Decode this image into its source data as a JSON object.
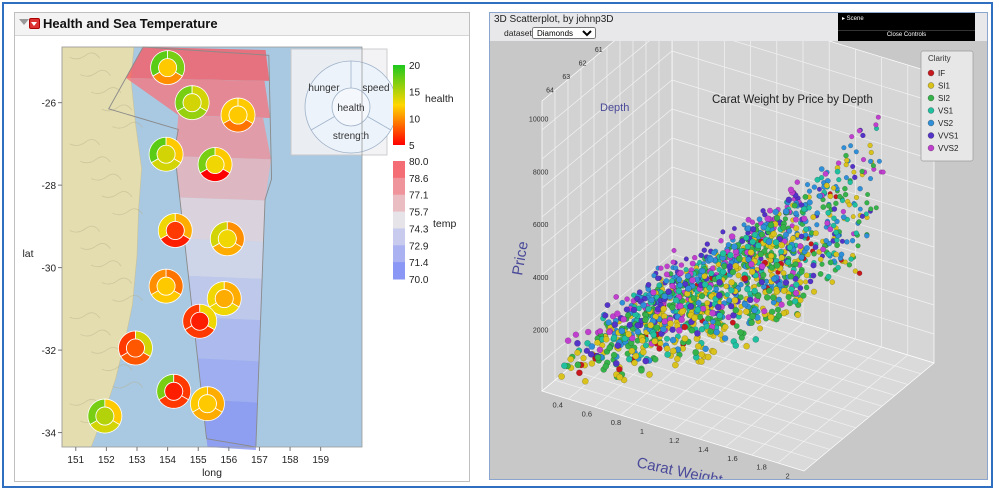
{
  "left_panel": {
    "title": "Health and Sea Temperature",
    "pie_legend": {
      "top_left": "hunger",
      "top_right": "speed",
      "center": "health",
      "bottom": "strength"
    },
    "colors": {
      "land": "#e4ddb0",
      "sea": "#a9c8e1",
      "health_low": "#ff0000",
      "health_mid": "#ffd700",
      "health_high": "#1ec81e",
      "temp_low": "#7b8bf7",
      "temp_mid": "#e6e4e9",
      "temp_high": "#f65a62"
    },
    "health_legend": {
      "title": "health",
      "ticks": [
        "20",
        "15",
        "10",
        "5"
      ]
    },
    "temp_legend": {
      "title": "temp",
      "ticks": [
        "80.0",
        "78.6",
        "77.1",
        "75.7",
        "74.3",
        "72.9",
        "71.4",
        "70.0"
      ]
    }
  },
  "chart_data": [
    {
      "type": "map",
      "title": "Health and Sea Temperature",
      "xlabel": "long",
      "ylabel": "lat",
      "xlim": [
        150.55,
        160.35
      ],
      "ylim": [
        -34.35,
        -24.65
      ],
      "x_ticks": [
        151,
        152,
        153,
        154,
        155,
        156,
        157,
        158,
        159
      ],
      "y_ticks": [
        -26,
        -28,
        -30,
        -32,
        -34
      ],
      "temperature_bands": [
        {
          "lat_top": -24.65,
          "temp": 80.0
        },
        {
          "lat_top": -25.4,
          "temp": 79.0
        },
        {
          "lat_top": -26.3,
          "temp": 78.0
        },
        {
          "lat_top": -27.3,
          "temp": 76.8
        },
        {
          "lat_top": -28.3,
          "temp": 75.5
        },
        {
          "lat_top": -29.3,
          "temp": 74.4
        },
        {
          "lat_top": -30.2,
          "temp": 73.4
        },
        {
          "lat_top": -31.2,
          "temp": 72.4
        },
        {
          "lat_top": -32.2,
          "temp": 71.5
        },
        {
          "lat_top": -33.2,
          "temp": 70.5
        }
      ],
      "health_glyphs": [
        {
          "long": 154.0,
          "lat": -25.15,
          "health": 12,
          "hunger": 18,
          "speed": 17,
          "strength": 10
        },
        {
          "long": 154.8,
          "lat": -26.0,
          "health": 14,
          "hunger": 17,
          "speed": 14,
          "strength": 16
        },
        {
          "long": 156.3,
          "lat": -26.3,
          "health": 12,
          "hunger": 12,
          "speed": 12,
          "strength": 9
        },
        {
          "long": 153.95,
          "lat": -27.25,
          "health": 14,
          "hunger": 18,
          "speed": 12,
          "strength": 14
        },
        {
          "long": 155.55,
          "lat": -27.5,
          "health": 13,
          "hunger": 17,
          "speed": 12,
          "strength": 5
        },
        {
          "long": 154.25,
          "lat": -29.1,
          "health": 7,
          "hunger": 13,
          "speed": 11,
          "strength": 6
        },
        {
          "long": 155.95,
          "lat": -29.3,
          "health": 13,
          "hunger": 14,
          "speed": 10,
          "strength": 11
        },
        {
          "long": 153.95,
          "lat": -30.45,
          "health": 12,
          "hunger": 10,
          "speed": 9,
          "strength": 12
        },
        {
          "long": 155.85,
          "lat": -30.75,
          "health": 11,
          "hunger": 13,
          "speed": 11,
          "strength": 13
        },
        {
          "long": 155.05,
          "lat": -31.3,
          "health": 6,
          "hunger": 7,
          "speed": 13,
          "strength": 7
        },
        {
          "long": 152.95,
          "lat": -31.95,
          "health": 8,
          "hunger": 7,
          "speed": 14,
          "strength": 8
        },
        {
          "long": 154.2,
          "lat": -33.0,
          "health": 6,
          "hunger": 17,
          "speed": 7,
          "strength": 7
        },
        {
          "long": 155.3,
          "lat": -33.3,
          "health": 12,
          "hunger": 12,
          "speed": 11,
          "strength": 11
        },
        {
          "long": 151.95,
          "lat": -33.6,
          "health": 15,
          "hunger": 17,
          "speed": 12,
          "strength": 14
        }
      ]
    },
    {
      "type": "scatter",
      "title": "Carat Weight by Price by Depth",
      "xlabel": "Carat Weight",
      "ylabel": "Price",
      "zlabel": "Depth",
      "x_ticks": [
        "0.4",
        "0.6",
        "0.8",
        "1",
        "1.2",
        "1.4",
        "1.6",
        "1.8",
        "2"
      ],
      "y_ticks": [
        "2000",
        "4000",
        "6000",
        "8000",
        "10000"
      ],
      "z_ticks": [
        "64",
        "63",
        "62",
        "61",
        "60",
        "59",
        "58",
        "57"
      ],
      "xlim": [
        0.3,
        2.1
      ],
      "ylim": [
        0,
        11000
      ],
      "zlim": [
        56.5,
        64.5
      ],
      "legend_title": "Clarity",
      "series": [
        {
          "name": "IF",
          "color": "#c8181e",
          "seed": 11,
          "count": 40
        },
        {
          "name": "SI1",
          "color": "#d9c21b",
          "seed": 22,
          "count": 320
        },
        {
          "name": "SI2",
          "color": "#36b24a",
          "seed": 33,
          "count": 300
        },
        {
          "name": "VS1",
          "color": "#1fbfa0",
          "seed": 44,
          "count": 210
        },
        {
          "name": "VS2",
          "color": "#2f8fd8",
          "seed": 55,
          "count": 260
        },
        {
          "name": "VVS1",
          "color": "#5433c8",
          "seed": 66,
          "count": 140
        },
        {
          "name": "VVS2",
          "color": "#c03fcf",
          "seed": 77,
          "count": 140
        }
      ]
    }
  ],
  "right_panel": {
    "title": "3D Scatterplot, by johnp3D",
    "dataset_label": "dataset:",
    "dataset_value": "Diamonds",
    "scene_label": "▸ Scene",
    "close_controls": "Close Controls",
    "legend_title": "Clarity"
  }
}
